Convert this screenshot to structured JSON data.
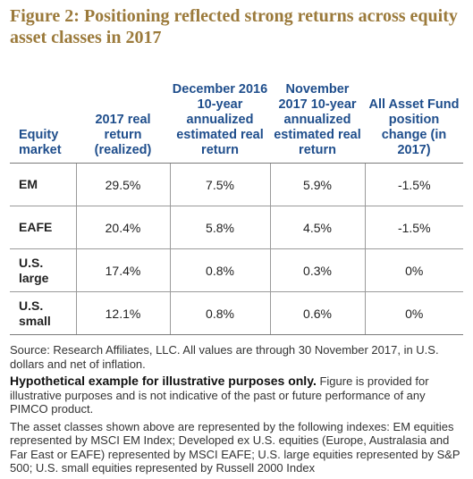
{
  "figure": {
    "title": "Figure 2: Positioning reflected strong returns across equity asset classes in 2017"
  },
  "table": {
    "headers": [
      "Equity market",
      "2017 real return (realized)",
      "December 2016 10-year annualized estimated real return",
      "November 2017 10-year annualized estimated real return",
      "All Asset Fund position change (in 2017)"
    ],
    "rows": [
      {
        "market": "EM",
        "realized": "29.5%",
        "dec2016": "7.5%",
        "nov2017": "5.9%",
        "change": "-1.5%"
      },
      {
        "market": "EAFE",
        "realized": "20.4%",
        "dec2016": "5.8%",
        "nov2017": "4.5%",
        "change": "-1.5%"
      },
      {
        "market": "U.S. large",
        "realized": "17.4%",
        "dec2016": "0.8%",
        "nov2017": "0.3%",
        "change": "0%"
      },
      {
        "market": "U.S. small",
        "realized": "12.1%",
        "dec2016": "0.8%",
        "nov2017": "0.6%",
        "change": "0%"
      }
    ]
  },
  "notes": {
    "source": "Source: Research Affiliates, LLC. All values are through 30 November 2017, in U.S. dollars and net of inflation.",
    "hypothetical_bold": "Hypothetical example for illustrative purposes only.",
    "hypothetical_rest": " Figure is provided for illustrative purposes and is not indicative of the past or future performance of any PIMCO product.",
    "indexes": "The asset classes shown above are represented by the following indexes: EM equities represented by MSCI EM Index; Developed ex U.S. equities (Europe, Australasia and Far East or EAFE) represented by MSCI EAFE; U.S. large equities represented by S&P 500; U.S. small equities represented by Russell 2000 Index"
  }
}
